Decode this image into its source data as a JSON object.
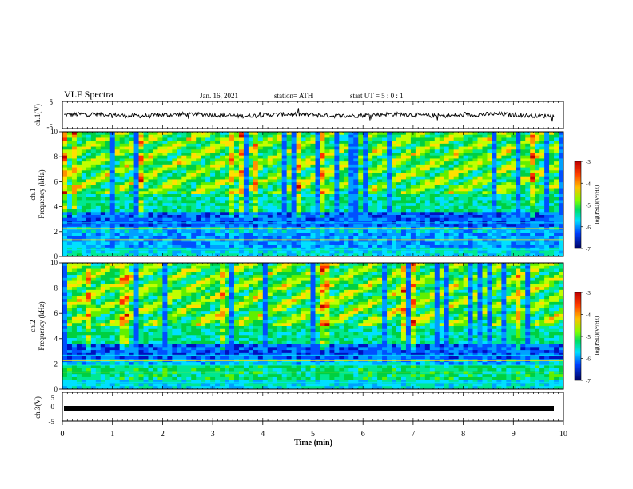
{
  "header": {
    "title": "VLF Spectra",
    "date": "Jan. 16, 2021",
    "station": "station= ATH",
    "start": "start  UT =  5 : 0  : 1"
  },
  "chart_data": [
    {
      "type": "line",
      "panel": "ch1-waveform",
      "ylabel": "ch.1(V)",
      "ylim": [
        -5,
        5
      ],
      "yticks": [
        "5",
        "-5"
      ],
      "xlim": [
        0,
        10
      ],
      "note": "noisy waveform centred near 0 V, excursions to about ±1.5 V",
      "grid": false
    },
    {
      "type": "heatmap",
      "panel": "ch1-spectrogram",
      "ylabel_top": "ch.1",
      "ylabel": "Frequency (kHz)",
      "ylim": [
        0,
        10
      ],
      "yticks": [
        "0",
        "2",
        "4",
        "6",
        "8",
        "10"
      ],
      "xlim": [
        0,
        10
      ],
      "colorbar": {
        "label": "log(PSD)(V²/Hz)",
        "range": [
          -7,
          -3
        ],
        "ticks": [
          "-3",
          "-4",
          "-5",
          "-6",
          "-7"
        ],
        "colors": [
          "#d00000",
          "#ff8000",
          "#ffff00",
          "#00c000",
          "#00ffff",
          "#0040ff",
          "#00008b"
        ]
      }
    },
    {
      "type": "heatmap",
      "panel": "ch2-spectrogram",
      "ylabel_top": "ch.2",
      "ylabel": "Frequency (kHz)",
      "ylim": [
        0,
        10
      ],
      "yticks": [
        "0",
        "2",
        "4",
        "6",
        "8",
        "10"
      ],
      "xlim": [
        0,
        10
      ],
      "colorbar": {
        "label": "log(PSD)(V²/Hz)",
        "range": [
          -7,
          -3
        ],
        "ticks": [
          "-3",
          "-4",
          "-5",
          "-6",
          "-7"
        ],
        "colors": [
          "#d00000",
          "#ff8000",
          "#ffff00",
          "#00c000",
          "#00ffff",
          "#0040ff",
          "#00008b"
        ]
      }
    },
    {
      "type": "line",
      "panel": "ch3-waveform",
      "ylabel": "ch.3(V)",
      "ylim": [
        -5,
        5
      ],
      "yticks": [
        "5",
        "0",
        "-5"
      ],
      "xlim": [
        0,
        10
      ],
      "note": "flat thick trace near -0.8 V",
      "grid": false
    }
  ],
  "xaxis": {
    "label": "Time (min)",
    "ticks": [
      "0",
      "1",
      "2",
      "3",
      "4",
      "5",
      "6",
      "7",
      "8",
      "9",
      "10"
    ]
  }
}
